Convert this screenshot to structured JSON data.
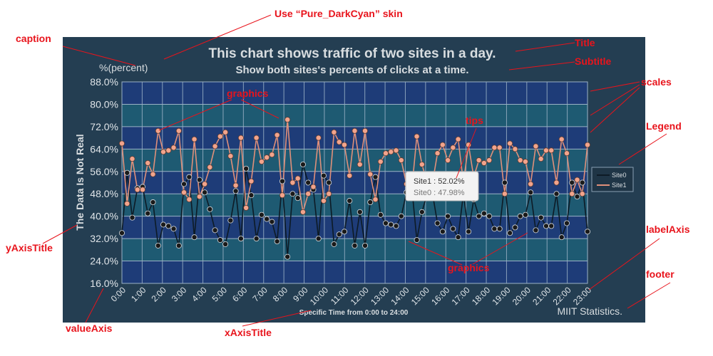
{
  "annotations": {
    "skin": "Use “Pure_DarkCyan” skin",
    "caption": "caption",
    "title": "Title",
    "subtitle": "Subtitle",
    "scales": "scales",
    "legend": "Legend",
    "graphics_top": "graphics",
    "graphics_bottom": "graphics",
    "tips": "tips",
    "yAxisTitle": "yAxisTitle",
    "labelAxis": "labelAxis",
    "footer": "footer",
    "valueAxis": "valueAxis",
    "xAxisTitle": "xAxisTitle"
  },
  "chart": {
    "caption": "%(percent)",
    "title": "This chart shows traffic of two sites in a day.",
    "subtitle": "Show both sites's percents of clicks at a time.",
    "y_axis_title": "The Data Is Not Real",
    "x_axis_title": "Specific Time from 0:00 to 24:00",
    "footer": "MIIT Statistics.",
    "tooltip": {
      "line1": "Site1 : 52.02%",
      "line2": "Site0 : 47.98%"
    }
  },
  "colors": {
    "panel_bg": "#243e52",
    "band_dark": "#1e3c78",
    "band_light": "#1e5a72",
    "grid": "#9bb2c6",
    "site0_line": "#0d1b26",
    "site0_marker": "#1a1a1a",
    "site1_line": "#e0907a",
    "site1_marker": "#f2a48c",
    "annotation": "#e8141c"
  },
  "chart_data": {
    "type": "line",
    "title": "This chart shows traffic of two sites in a day.",
    "subtitle": "Show both sites's percents of clicks at a time.",
    "xlabel": "Specific Time from 0:00 to 24:00",
    "ylabel": "The Data Is Not Real",
    "y_unit_caption": "%(percent)",
    "ylim": [
      16,
      88
    ],
    "y_ticks": [
      "16.0%",
      "24.0%",
      "32.0%",
      "40.0%",
      "48.0%",
      "56.0%",
      "64.0%",
      "72.0%",
      "80.0%",
      "88.0%"
    ],
    "x_ticks": [
      "0:00",
      "1:00",
      "2:00",
      "3:00",
      "4:00",
      "5:00",
      "6:00",
      "7:00",
      "8:00",
      "9:00",
      "10:00",
      "11:00",
      "12:00",
      "13:00",
      "14:00",
      "15:00",
      "16:00",
      "17:00",
      "18:00",
      "19:00",
      "20:00",
      "21:00",
      "22:00",
      "23:00"
    ],
    "grid": true,
    "legend_position": "right",
    "series": [
      {
        "name": "Site0",
        "values": [
          34.0,
          55.5,
          39.5,
          50.0,
          50.5,
          41.0,
          45.0,
          29.5,
          37.0,
          36.5,
          35.5,
          29.5,
          51.5,
          54.0,
          32.5,
          53.0,
          48.5,
          42.5,
          35.0,
          31.5,
          30.0,
          38.5,
          49.0,
          32.0,
          57.0,
          47.5,
          32.0,
          40.5,
          39.0,
          38.0,
          31.0,
          52.5,
          25.5,
          48.0,
          46.5,
          58.5,
          52.0,
          49.5,
          32.0,
          54.5,
          52.0,
          30.0,
          33.5,
          34.5,
          45.5,
          29.5,
          41.5,
          29.5,
          45.0,
          54.0,
          40.5,
          37.5,
          37.0,
          36.5,
          40.0,
          48.5,
          51.0,
          31.5,
          41.5,
          48.0,
          48.5,
          37.5,
          34.5,
          40.0,
          35.5,
          32.5,
          48.0,
          34.5,
          46.0,
          40.0,
          41.0,
          40.0,
          35.5,
          35.5,
          52.0,
          34.0,
          36.0,
          40.0,
          40.5,
          48.5,
          35.0,
          39.5,
          36.5,
          36.5,
          48.0,
          32.5,
          37.5,
          52.0,
          47.0,
          52.0,
          34.5
        ]
      },
      {
        "name": "Site1",
        "values": [
          66.0,
          44.5,
          60.5,
          49.5,
          49.5,
          59.0,
          55.0,
          70.5,
          63.0,
          63.5,
          64.5,
          70.5,
          48.5,
          46.0,
          67.5,
          47.0,
          51.5,
          57.5,
          65.0,
          68.5,
          70.0,
          61.5,
          51.0,
          68.0,
          43.0,
          52.5,
          68.0,
          59.5,
          61.0,
          62.0,
          69.0,
          47.5,
          74.5,
          52.0,
          53.5,
          41.5,
          48.0,
          50.5,
          68.0,
          45.5,
          48.0,
          70.0,
          66.5,
          65.5,
          54.5,
          70.5,
          58.5,
          70.5,
          55.0,
          46.0,
          59.5,
          62.5,
          63.0,
          63.5,
          60.0,
          51.5,
          49.0,
          68.5,
          58.5,
          52.0,
          51.5,
          62.5,
          65.5,
          60.0,
          64.5,
          67.5,
          52.0,
          65.5,
          54.0,
          60.0,
          59.0,
          60.0,
          64.5,
          64.5,
          48.0,
          66.0,
          64.0,
          60.0,
          59.5,
          51.5,
          65.0,
          60.5,
          63.5,
          63.5,
          52.0,
          67.5,
          62.5,
          48.0,
          53.0,
          48.0,
          65.5
        ]
      }
    ]
  }
}
